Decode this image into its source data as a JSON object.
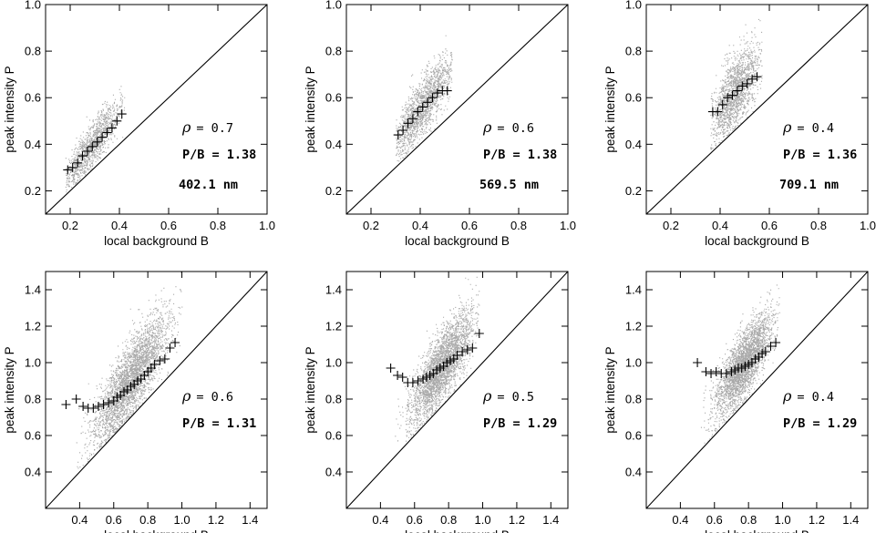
{
  "colors": {
    "scatter": "#8c8c8c",
    "axes": "#000000",
    "background": "#ffffff"
  },
  "chart_data": [
    {
      "type": "scatter",
      "xlabel": "local background   B",
      "ylabel": "peak intensity   P",
      "xlim": [
        0.1,
        1.0
      ],
      "ylim": [
        0.1,
        1.0
      ],
      "xticks": [
        "0.2",
        "0.4",
        "0.6",
        "0.8",
        "1.0"
      ],
      "yticks": [
        "0.2",
        "0.4",
        "0.6",
        "0.8",
        "1.0"
      ],
      "annotations": {
        "rho_value": "= 0.7",
        "ratio": "P/B = 1.38",
        "wavelength": "402.1 nm"
      },
      "cloud": {
        "n": 1200,
        "x_center": 0.29,
        "x_spread": 0.06,
        "x_min": 0.18,
        "x_max": 0.42,
        "slope": 1.38,
        "sd": 0.045
      },
      "binned_means": {
        "x": [
          0.19,
          0.21,
          0.23,
          0.25,
          0.27,
          0.29,
          0.31,
          0.33,
          0.35,
          0.37,
          0.39,
          0.41
        ],
        "y": [
          0.29,
          0.3,
          0.32,
          0.35,
          0.37,
          0.39,
          0.41,
          0.43,
          0.45,
          0.47,
          0.5,
          0.53
        ]
      }
    },
    {
      "type": "scatter",
      "xlabel": "local background   B",
      "ylabel": "peak intensity   P",
      "xlim": [
        0.1,
        1.0
      ],
      "ylim": [
        0.1,
        1.0
      ],
      "xticks": [
        "0.2",
        "0.4",
        "0.6",
        "0.8",
        "1.0"
      ],
      "yticks": [
        "0.2",
        "0.4",
        "0.6",
        "0.8",
        "1.0"
      ],
      "annotations": {
        "rho_value": "= 0.6",
        "ratio": "P/B = 1.38",
        "wavelength": "569.5 nm"
      },
      "cloud": {
        "n": 1600,
        "x_center": 0.41,
        "x_spread": 0.06,
        "x_min": 0.3,
        "x_max": 0.53,
        "slope": 1.38,
        "sd": 0.06
      },
      "binned_means": {
        "x": [
          0.31,
          0.33,
          0.35,
          0.37,
          0.39,
          0.41,
          0.43,
          0.45,
          0.47,
          0.49,
          0.51
        ],
        "y": [
          0.44,
          0.46,
          0.49,
          0.51,
          0.54,
          0.56,
          0.58,
          0.6,
          0.62,
          0.63,
          0.63
        ]
      }
    },
    {
      "type": "scatter",
      "xlabel": "local background   B",
      "ylabel": "peak intensity   P",
      "xlim": [
        0.1,
        1.0
      ],
      "ylim": [
        0.1,
        1.0
      ],
      "xticks": [
        "0.2",
        "0.4",
        "0.6",
        "0.8",
        "1.0"
      ],
      "yticks": [
        "0.2",
        "0.4",
        "0.6",
        "0.8",
        "1.0"
      ],
      "annotations": {
        "rho_value": "= 0.4",
        "ratio": "P/B = 1.36",
        "wavelength": "709.1 nm"
      },
      "cloud": {
        "n": 1600,
        "x_center": 0.46,
        "x_spread": 0.05,
        "x_min": 0.36,
        "x_max": 0.57,
        "slope": 1.36,
        "sd": 0.075
      },
      "binned_means": {
        "x": [
          0.37,
          0.39,
          0.41,
          0.43,
          0.45,
          0.47,
          0.49,
          0.51,
          0.53,
          0.55
        ],
        "y": [
          0.54,
          0.54,
          0.57,
          0.6,
          0.61,
          0.63,
          0.65,
          0.66,
          0.68,
          0.69
        ]
      }
    },
    {
      "type": "scatter",
      "xlabel": "local background   B",
      "ylabel": "peak intensity   P",
      "xlim": [
        0.2,
        1.5
      ],
      "ylim": [
        0.2,
        1.5
      ],
      "xticks": [
        "0.4",
        "0.6",
        "0.8",
        "1.0",
        "1.2",
        "1.4"
      ],
      "yticks": [
        "0.4",
        "0.6",
        "0.8",
        "1.0",
        "1.2",
        "1.4"
      ],
      "annotations": {
        "rho_value": "= 0.6",
        "ratio": "P/B = 1.31"
      },
      "cloud": {
        "n": 3200,
        "x_center": 0.7,
        "x_spread": 0.11,
        "x_min": 0.38,
        "x_max": 1.0,
        "slope": 1.31,
        "sd": 0.1
      },
      "binned_means": {
        "x": [
          0.32,
          0.38,
          0.42,
          0.45,
          0.48,
          0.51,
          0.54,
          0.57,
          0.6,
          0.62,
          0.64,
          0.66,
          0.68,
          0.7,
          0.72,
          0.74,
          0.76,
          0.78,
          0.8,
          0.82,
          0.84,
          0.87,
          0.9,
          0.93,
          0.96
        ],
        "y": [
          0.77,
          0.8,
          0.76,
          0.75,
          0.75,
          0.76,
          0.77,
          0.78,
          0.79,
          0.81,
          0.82,
          0.84,
          0.85,
          0.87,
          0.88,
          0.9,
          0.91,
          0.93,
          0.95,
          0.97,
          0.99,
          1.01,
          1.02,
          1.08,
          1.11
        ]
      }
    },
    {
      "type": "scatter",
      "xlabel": "local background   B",
      "ylabel": "peak intensity   P",
      "xlim": [
        0.2,
        1.5
      ],
      "ylim": [
        0.2,
        1.5
      ],
      "xticks": [
        "0.4",
        "0.6",
        "0.8",
        "1.0",
        "1.2",
        "1.4"
      ],
      "yticks": [
        "0.4",
        "0.6",
        "0.8",
        "1.0",
        "1.2",
        "1.4"
      ],
      "annotations": {
        "rho_value": "= 0.5",
        "ratio": "P/B = 1.29"
      },
      "cloud": {
        "n": 3000,
        "x_center": 0.76,
        "x_spread": 0.09,
        "x_min": 0.48,
        "x_max": 0.98,
        "slope": 1.29,
        "sd": 0.09
      },
      "binned_means": {
        "x": [
          0.46,
          0.5,
          0.53,
          0.56,
          0.59,
          0.62,
          0.65,
          0.67,
          0.69,
          0.71,
          0.73,
          0.75,
          0.77,
          0.79,
          0.81,
          0.83,
          0.85,
          0.88,
          0.91,
          0.94,
          0.98
        ],
        "y": [
          0.97,
          0.93,
          0.92,
          0.89,
          0.89,
          0.9,
          0.91,
          0.92,
          0.93,
          0.94,
          0.96,
          0.97,
          0.98,
          1.0,
          1.01,
          1.02,
          1.04,
          1.06,
          1.07,
          1.08,
          1.16
        ]
      }
    },
    {
      "type": "scatter",
      "xlabel": "local background   B",
      "ylabel": "peak intensity   P",
      "xlim": [
        0.2,
        1.5
      ],
      "ylim": [
        0.2,
        1.5
      ],
      "xticks": [
        "0.4",
        "0.6",
        "0.8",
        "1.0",
        "1.2",
        "1.4"
      ],
      "yticks": [
        "0.4",
        "0.6",
        "0.8",
        "1.0",
        "1.2",
        "1.4"
      ],
      "annotations": {
        "rho_value": "= 0.4",
        "ratio": "P/B = 1.29"
      },
      "cloud": {
        "n": 3000,
        "x_center": 0.77,
        "x_spread": 0.08,
        "x_min": 0.52,
        "x_max": 0.98,
        "slope": 1.29,
        "sd": 0.085
      },
      "binned_means": {
        "x": [
          0.5,
          0.55,
          0.58,
          0.61,
          0.64,
          0.67,
          0.7,
          0.72,
          0.74,
          0.76,
          0.78,
          0.8,
          0.82,
          0.84,
          0.86,
          0.88,
          0.9,
          0.93,
          0.96
        ],
        "y": [
          1.0,
          0.95,
          0.94,
          0.95,
          0.94,
          0.94,
          0.95,
          0.96,
          0.97,
          0.97,
          0.98,
          0.99,
          1.0,
          1.02,
          1.03,
          1.05,
          1.06,
          1.09,
          1.11
        ]
      }
    }
  ]
}
